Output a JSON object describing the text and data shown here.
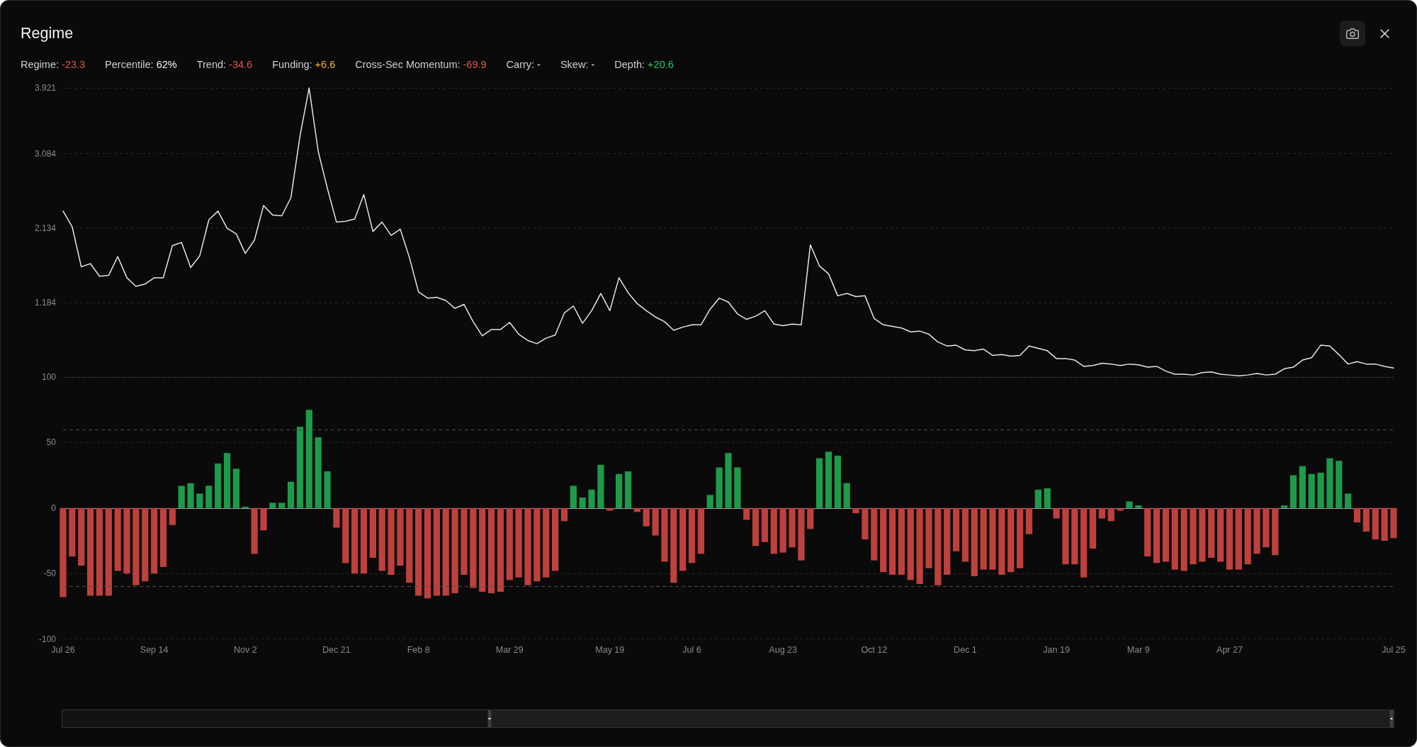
{
  "chart_data": [
    {
      "type": "line",
      "title": "Regime",
      "annotations": [
        "Regime: -23.3",
        "Percentile: 62%",
        "Trend: -34.6",
        "Funding: +6.6",
        "Cross-Sec Momentum: -69.9",
        "Carry: -",
        "Skew: -",
        "Depth: +20.6"
      ],
      "categories": [
        null,
        null,
        null,
        null,
        null,
        null,
        null,
        null,
        null,
        null,
        null,
        null,
        null,
        null,
        null,
        null,
        null,
        null,
        null,
        null,
        null,
        null,
        null,
        null,
        null,
        null,
        null,
        null,
        null,
        null,
        null,
        null,
        null,
        null,
        null,
        null,
        null,
        null,
        null,
        null,
        null,
        null,
        null,
        null,
        null,
        null,
        null,
        null,
        null,
        null,
        null,
        null,
        null,
        null,
        null,
        null,
        null,
        null,
        null,
        null,
        null,
        null,
        null,
        null,
        null,
        null,
        null,
        null,
        null,
        null,
        null,
        null,
        null,
        null,
        null,
        null,
        null,
        null,
        null,
        null,
        null,
        null,
        null,
        null,
        null,
        null,
        null,
        null,
        null,
        null,
        null,
        null,
        null,
        null,
        null,
        null,
        null,
        null,
        null,
        null,
        null,
        null,
        null,
        null,
        null,
        null,
        null,
        null,
        null,
        null,
        null,
        null,
        null,
        null,
        null,
        null,
        null,
        null,
        null,
        null,
        null,
        null,
        null,
        null,
        null,
        null,
        null,
        null,
        null,
        null,
        null,
        null,
        null,
        null,
        null,
        null,
        null,
        null,
        null,
        null,
        null,
        null,
        null,
        null,
        null,
        null,
        null
      ],
      "values": [
        2.35,
        2.15,
        1.64,
        1.68,
        1.52,
        1.53,
        1.77,
        1.5,
        1.39,
        1.42,
        1.5,
        1.5,
        1.91,
        1.95,
        1.63,
        1.78,
        2.24,
        2.35,
        2.13,
        2.06,
        1.81,
        1.98,
        2.42,
        2.3,
        2.29,
        2.52,
        3.31,
        3.92,
        3.11,
        2.64,
        2.21,
        2.22,
        2.25,
        2.56,
        2.09,
        2.21,
        2.04,
        2.12,
        1.76,
        1.32,
        1.24,
        1.25,
        1.21,
        1.11,
        1.16,
        0.94,
        0.76,
        0.84,
        0.84,
        0.93,
        0.78,
        0.7,
        0.66,
        0.73,
        0.77,
        1.05,
        1.14,
        0.92,
        1.08,
        1.3,
        1.08,
        1.5,
        1.31,
        1.17,
        1.08,
        1.0,
        0.94,
        0.83,
        0.87,
        0.9,
        0.9,
        1.1,
        1.24,
        1.19,
        1.04,
        0.97,
        1.01,
        1.08,
        0.91,
        0.89,
        0.91,
        0.9,
        1.92,
        1.65,
        1.55,
        1.27,
        1.3,
        1.26,
        1.27,
        0.98,
        0.9,
        0.88,
        0.86,
        0.81,
        0.82,
        0.78,
        0.68,
        0.63,
        0.64,
        0.58,
        0.57,
        0.59,
        0.51,
        0.52,
        0.5,
        0.51,
        0.63,
        0.6,
        0.57,
        0.47,
        0.47,
        0.45,
        0.37,
        0.38,
        0.41,
        0.4,
        0.38,
        0.4,
        0.39,
        0.36,
        0.37,
        0.31,
        0.27,
        0.27,
        0.26,
        0.29,
        0.3,
        0.27,
        0.26,
        0.25,
        0.26,
        0.28,
        0.26,
        0.27,
        0.34,
        0.36,
        0.45,
        0.48,
        0.64,
        0.63,
        0.52,
        0.4,
        0.43,
        0.4,
        0.4,
        0.37,
        0.35
      ],
      "color": "#e6e6e6",
      "ylim": [
        0.234,
        3.921
      ],
      "yticks": [
        1.184,
        2.134,
        3.084,
        3.921
      ],
      "grid": "y",
      "tick_labels": "y"
    },
    {
      "type": "bar",
      "categories": [
        "Jul 26",
        null,
        null,
        null,
        null,
        null,
        null,
        null,
        null,
        null,
        "Sep 14",
        null,
        null,
        null,
        null,
        null,
        null,
        null,
        null,
        null,
        "Nov 2",
        null,
        null,
        null,
        null,
        null,
        null,
        null,
        null,
        null,
        "Dec 21",
        null,
        null,
        null,
        null,
        null,
        null,
        null,
        null,
        "Feb 8",
        null,
        null,
        null,
        null,
        null,
        null,
        null,
        null,
        null,
        "Mar 29",
        null,
        null,
        null,
        null,
        null,
        null,
        null,
        null,
        null,
        null,
        "May 19",
        null,
        null,
        null,
        null,
        null,
        null,
        null,
        null,
        "Jul 6",
        null,
        null,
        null,
        null,
        null,
        null,
        null,
        null,
        null,
        "Aug 23",
        null,
        null,
        null,
        null,
        null,
        null,
        null,
        null,
        null,
        "Oct 12",
        null,
        null,
        null,
        null,
        null,
        null,
        null,
        null,
        null,
        "Dec 1",
        null,
        null,
        null,
        null,
        null,
        null,
        null,
        null,
        null,
        "Jan 19",
        null,
        null,
        null,
        null,
        null,
        null,
        null,
        null,
        "Mar 9",
        null,
        null,
        null,
        null,
        null,
        null,
        null,
        null,
        null,
        "Apr 27",
        null,
        null,
        null,
        null,
        null,
        null,
        null,
        null,
        null,
        null,
        null,
        null,
        null,
        null,
        null,
        null,
        null,
        "Jul 25"
      ],
      "values": [
        -68,
        -37,
        -44,
        -67,
        -67,
        -67,
        -48,
        -50,
        -59,
        -56,
        -50,
        -45,
        -13,
        17,
        19,
        11,
        17,
        34,
        42,
        30,
        1,
        -35,
        -17,
        4,
        4,
        20,
        62,
        75,
        54,
        28,
        -15,
        -42,
        -50,
        -50,
        -38,
        -48,
        -51,
        -44,
        -57,
        -67,
        -69,
        -67,
        -67,
        -65,
        -51,
        -61,
        -64,
        -65,
        -64,
        -55,
        -53,
        -59,
        -56,
        -53,
        -48,
        -10,
        17,
        8,
        14,
        33,
        -2,
        26,
        28,
        -3,
        -14,
        -21,
        -41,
        -57,
        -48,
        -42,
        -35,
        10,
        31,
        42,
        31,
        -9,
        -29,
        -26,
        -35,
        -34,
        -30,
        -40,
        -16,
        38,
        43,
        40,
        19,
        -4,
        -24,
        -40,
        -49,
        -51,
        -51,
        -55,
        -58,
        -46,
        -59,
        -51,
        -33,
        -41,
        -52,
        -47,
        -47,
        -51,
        -49,
        -46,
        -20,
        14,
        15,
        -8,
        -43,
        -43,
        -53,
        -31,
        -8,
        -10,
        -2,
        5,
        2,
        -37,
        -42,
        -41,
        -47,
        -48,
        -43,
        -41,
        -38,
        -41,
        -47,
        -47,
        -43,
        -35,
        -30,
        -36,
        2,
        25,
        32,
        26,
        27,
        38,
        36,
        11,
        -11,
        -18,
        -24,
        -25,
        -23
      ],
      "colors": [
        "#bd413d",
        "#bd413d",
        "#bd413d",
        "#bd413d",
        "#bd413d",
        "#bd413d",
        "#bd413d",
        "#bd413d",
        "#bd413d",
        "#bd413d",
        "#bd413d",
        "#bd413d",
        "#bd413d",
        "#1f9a4a",
        "#1f9a4a",
        "#1f9a4a",
        "#1f9a4a",
        "#1f9a4a",
        "#1f9a4a",
        "#1f9a4a",
        "#1f9a4a",
        "#bd413d",
        "#bd413d",
        "#1f9a4a",
        "#1f9a4a",
        "#1f9a4a",
        "#1f9a4a",
        "#1f9a4a",
        "#1f9a4a",
        "#1f9a4a",
        "#bd413d",
        "#bd413d",
        "#bd413d",
        "#bd413d",
        "#bd413d",
        "#bd413d",
        "#bd413d",
        "#bd413d",
        "#bd413d",
        "#bd413d",
        "#bd413d",
        "#bd413d",
        "#bd413d",
        "#bd413d",
        "#bd413d",
        "#bd413d",
        "#bd413d",
        "#bd413d",
        "#bd413d",
        "#bd413d",
        "#bd413d",
        "#bd413d",
        "#bd413d",
        "#bd413d",
        "#bd413d",
        "#bd413d",
        "#1f9a4a",
        "#1f9a4a",
        "#1f9a4a",
        "#1f9a4a",
        "#bd413d",
        "#1f9a4a",
        "#1f9a4a",
        "#bd413d",
        "#bd413d",
        "#bd413d",
        "#bd413d",
        "#bd413d",
        "#bd413d",
        "#bd413d",
        "#bd413d",
        "#1f9a4a",
        "#1f9a4a",
        "#1f9a4a",
        "#1f9a4a",
        "#bd413d",
        "#bd413d",
        "#bd413d",
        "#bd413d",
        "#bd413d",
        "#bd413d",
        "#bd413d",
        "#bd413d",
        "#1f9a4a",
        "#1f9a4a",
        "#1f9a4a",
        "#1f9a4a",
        "#bd413d",
        "#bd413d",
        "#bd413d",
        "#bd413d",
        "#bd413d",
        "#bd413d",
        "#bd413d",
        "#bd413d",
        "#bd413d",
        "#bd413d",
        "#bd413d",
        "#bd413d",
        "#bd413d",
        "#bd413d",
        "#bd413d",
        "#bd413d",
        "#bd413d",
        "#bd413d",
        "#bd413d",
        "#bd413d",
        "#1f9a4a",
        "#1f9a4a",
        "#bd413d",
        "#bd413d",
        "#bd413d",
        "#bd413d",
        "#bd413d",
        "#bd413d",
        "#bd413d",
        "#bd413d",
        "#1f9a4a",
        "#1f9a4a",
        "#bd413d",
        "#bd413d",
        "#bd413d",
        "#bd413d",
        "#bd413d",
        "#bd413d",
        "#bd413d",
        "#bd413d",
        "#bd413d",
        "#bd413d",
        "#bd413d",
        "#bd413d",
        "#bd413d",
        "#bd413d",
        "#bd413d",
        "#1f9a4a",
        "#1f9a4a",
        "#1f9a4a",
        "#1f9a4a",
        "#1f9a4a",
        "#1f9a4a",
        "#1f9a4a",
        "#1f9a4a",
        "#bd413d",
        "#bd413d",
        "#bd413d",
        "#bd413d",
        "#bd413d"
      ],
      "ylim": [
        -100,
        100
      ],
      "yticks": [
        -100,
        -50,
        0,
        50,
        100
      ],
      "grid": "y",
      "ref_lines": [
        {
          "axis": "y",
          "value": 60,
          "line_style": "dashed",
          "color": "#4b4b4b"
        },
        {
          "axis": "y",
          "value": -60,
          "line_style": "dashed",
          "color": "#4b4b4b"
        }
      ]
    }
  ]
}
